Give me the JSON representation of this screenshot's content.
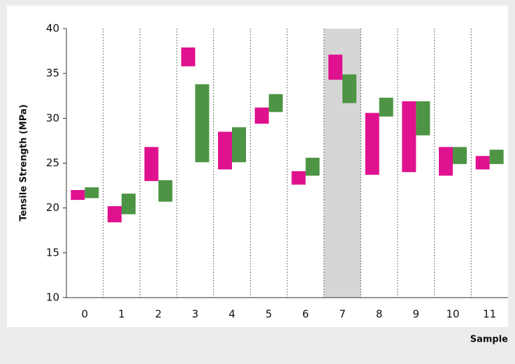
{
  "chart_data": {
    "type": "floating_bar",
    "xlabel": "Sample",
    "ylabel": "Tensile Strength (MPa)",
    "categories": [
      "0",
      "1",
      "2",
      "3",
      "4",
      "5",
      "6",
      "7",
      "8",
      "9",
      "10",
      "11"
    ],
    "series": [
      {
        "color": "#e0118e",
        "values": [
          [
            20.9,
            22.0
          ],
          [
            18.4,
            20.2
          ],
          [
            23.0,
            26.8
          ],
          [
            35.8,
            37.9
          ],
          [
            24.3,
            28.5
          ],
          [
            29.4,
            31.2
          ],
          [
            22.6,
            24.1
          ],
          [
            34.3,
            37.1
          ],
          [
            23.7,
            30.6
          ],
          [
            24.0,
            31.9
          ],
          [
            23.6,
            26.8
          ],
          [
            24.3,
            25.8
          ]
        ]
      },
      {
        "color": "#4d9444",
        "values": [
          [
            21.1,
            22.3
          ],
          [
            19.3,
            21.6
          ],
          [
            20.7,
            23.1
          ],
          [
            25.1,
            33.8
          ],
          [
            25.1,
            29.0
          ],
          [
            30.7,
            32.7
          ],
          [
            23.6,
            25.6
          ],
          [
            31.7,
            34.9
          ],
          [
            30.2,
            32.3
          ],
          [
            28.1,
            31.9
          ],
          [
            24.9,
            26.8
          ],
          [
            24.9,
            26.5
          ]
        ]
      }
    ],
    "highlight_category": 7,
    "ylim": [
      10,
      40
    ],
    "yticks": [
      10,
      15,
      20,
      25,
      30,
      35,
      40
    ]
  }
}
